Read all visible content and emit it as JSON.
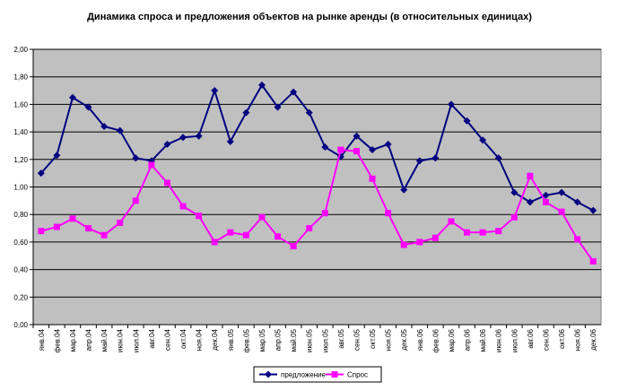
{
  "chart_data": {
    "type": "line",
    "title": "Динамика спроса и предложения объектов на рынке аренды (в относительных единицах)",
    "categories": [
      "янв.04",
      "фев.04",
      "мар.04",
      "апр.04",
      "май.04",
      "июн.04",
      "июл.04",
      "авг.04",
      "сен.04",
      "окт.04",
      "ноя.04",
      "дек.04",
      "янв.05",
      "фев.05",
      "мар.05",
      "апр.05",
      "май.05",
      "июн.05",
      "июл.05",
      "авг.05",
      "сен.05",
      "окт.05",
      "ноя.05",
      "дек.05",
      "янв.06",
      "фев.06",
      "мар.06",
      "апр.06",
      "май.06",
      "июн.06",
      "июл.06",
      "авг.06",
      "сен.06",
      "окт.06",
      "ноя.06",
      "дек.06"
    ],
    "series": [
      {
        "name": "предложение",
        "color": "#000080",
        "marker": "diamond",
        "values": [
          1.1,
          1.23,
          1.65,
          1.58,
          1.44,
          1.41,
          1.21,
          1.19,
          1.31,
          1.36,
          1.37,
          1.7,
          1.33,
          1.54,
          1.74,
          1.58,
          1.69,
          1.54,
          1.29,
          1.22,
          1.37,
          1.27,
          1.31,
          0.98,
          1.19,
          1.21,
          1.6,
          1.48,
          1.34,
          1.21,
          0.96,
          0.89,
          0.94,
          0.96,
          0.89,
          0.83
        ]
      },
      {
        "name": "Спрос",
        "color": "#ff00ff",
        "marker": "square",
        "values": [
          0.68,
          0.71,
          0.77,
          0.7,
          0.65,
          0.74,
          0.9,
          1.16,
          1.03,
          0.86,
          0.79,
          0.6,
          0.67,
          0.65,
          0.78,
          0.64,
          0.57,
          0.7,
          0.81,
          1.27,
          1.26,
          1.06,
          0.81,
          0.58,
          0.6,
          0.63,
          0.75,
          0.67,
          0.67,
          0.68,
          0.78,
          1.08,
          0.89,
          0.82,
          0.62,
          0.46
        ]
      }
    ],
    "ylim": [
      0,
      2
    ],
    "yticks": [
      {
        "value": 0,
        "label": "0,00"
      },
      {
        "value": 0.2,
        "label": "0,20"
      },
      {
        "value": 0.4,
        "label": "0,40"
      },
      {
        "value": 0.6,
        "label": "0,60"
      },
      {
        "value": 0.8,
        "label": "0,80"
      },
      {
        "value": 1,
        "label": "1,00"
      },
      {
        "value": 1.2,
        "label": "1,20"
      },
      {
        "value": 1.4,
        "label": "1,40"
      },
      {
        "value": 1.6,
        "label": "1,60"
      },
      {
        "value": 1.8,
        "label": "1,80"
      },
      {
        "value": 2,
        "label": "2,00"
      }
    ],
    "grid": true,
    "plot_background": "#c0c0c0",
    "legend": "bottom"
  }
}
